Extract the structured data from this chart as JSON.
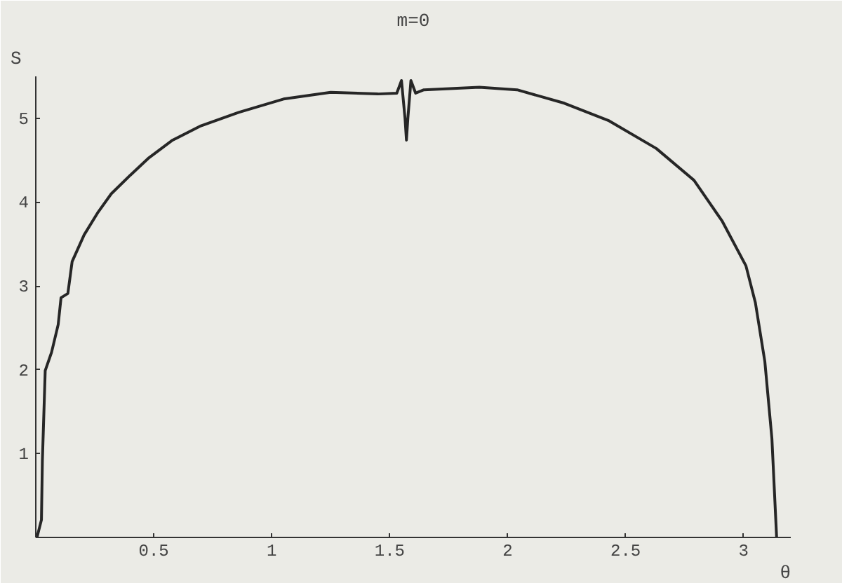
{
  "chart_data": {
    "type": "line",
    "title": "m=0",
    "xlabel": "θ",
    "ylabel": "S",
    "x": [
      0.005,
      0.024,
      0.028,
      0.04,
      0.067,
      0.095,
      0.107,
      0.136,
      0.154,
      0.205,
      0.264,
      0.32,
      0.4,
      0.48,
      0.58,
      0.7,
      0.86,
      1.05,
      1.25,
      1.45,
      1.53,
      1.55,
      1.565,
      1.571,
      1.577,
      1.59,
      1.61,
      1.645,
      1.88,
      2.04,
      2.24,
      2.43,
      2.63,
      2.79,
      2.91,
      3.01,
      3.05,
      3.09,
      3.12,
      3.14
    ],
    "series": [
      {
        "color": "#262626",
        "values": [
          0,
          0.21,
          0.92,
          1.99,
          2.21,
          2.54,
          2.86,
          2.91,
          3.29,
          3.61,
          3.88,
          4.1,
          4.32,
          4.53,
          4.74,
          4.91,
          5.07,
          5.23,
          5.31,
          5.29,
          5.3,
          5.45,
          5.0,
          4.74,
          5.0,
          5.45,
          5.3,
          5.34,
          5.37,
          5.34,
          5.18,
          4.97,
          4.64,
          4.26,
          3.77,
          3.24,
          2.8,
          2.1,
          1.18,
          0
        ]
      }
    ],
    "xlim": [
      0,
      3.2
    ],
    "ylim": [
      0,
      5.5
    ],
    "xticks": [
      0.5,
      1,
      1.5,
      2,
      2.5,
      3
    ],
    "yticks": [
      1,
      2,
      3,
      4,
      5
    ],
    "grid": false,
    "marker": "none",
    "line_style": "solid"
  }
}
